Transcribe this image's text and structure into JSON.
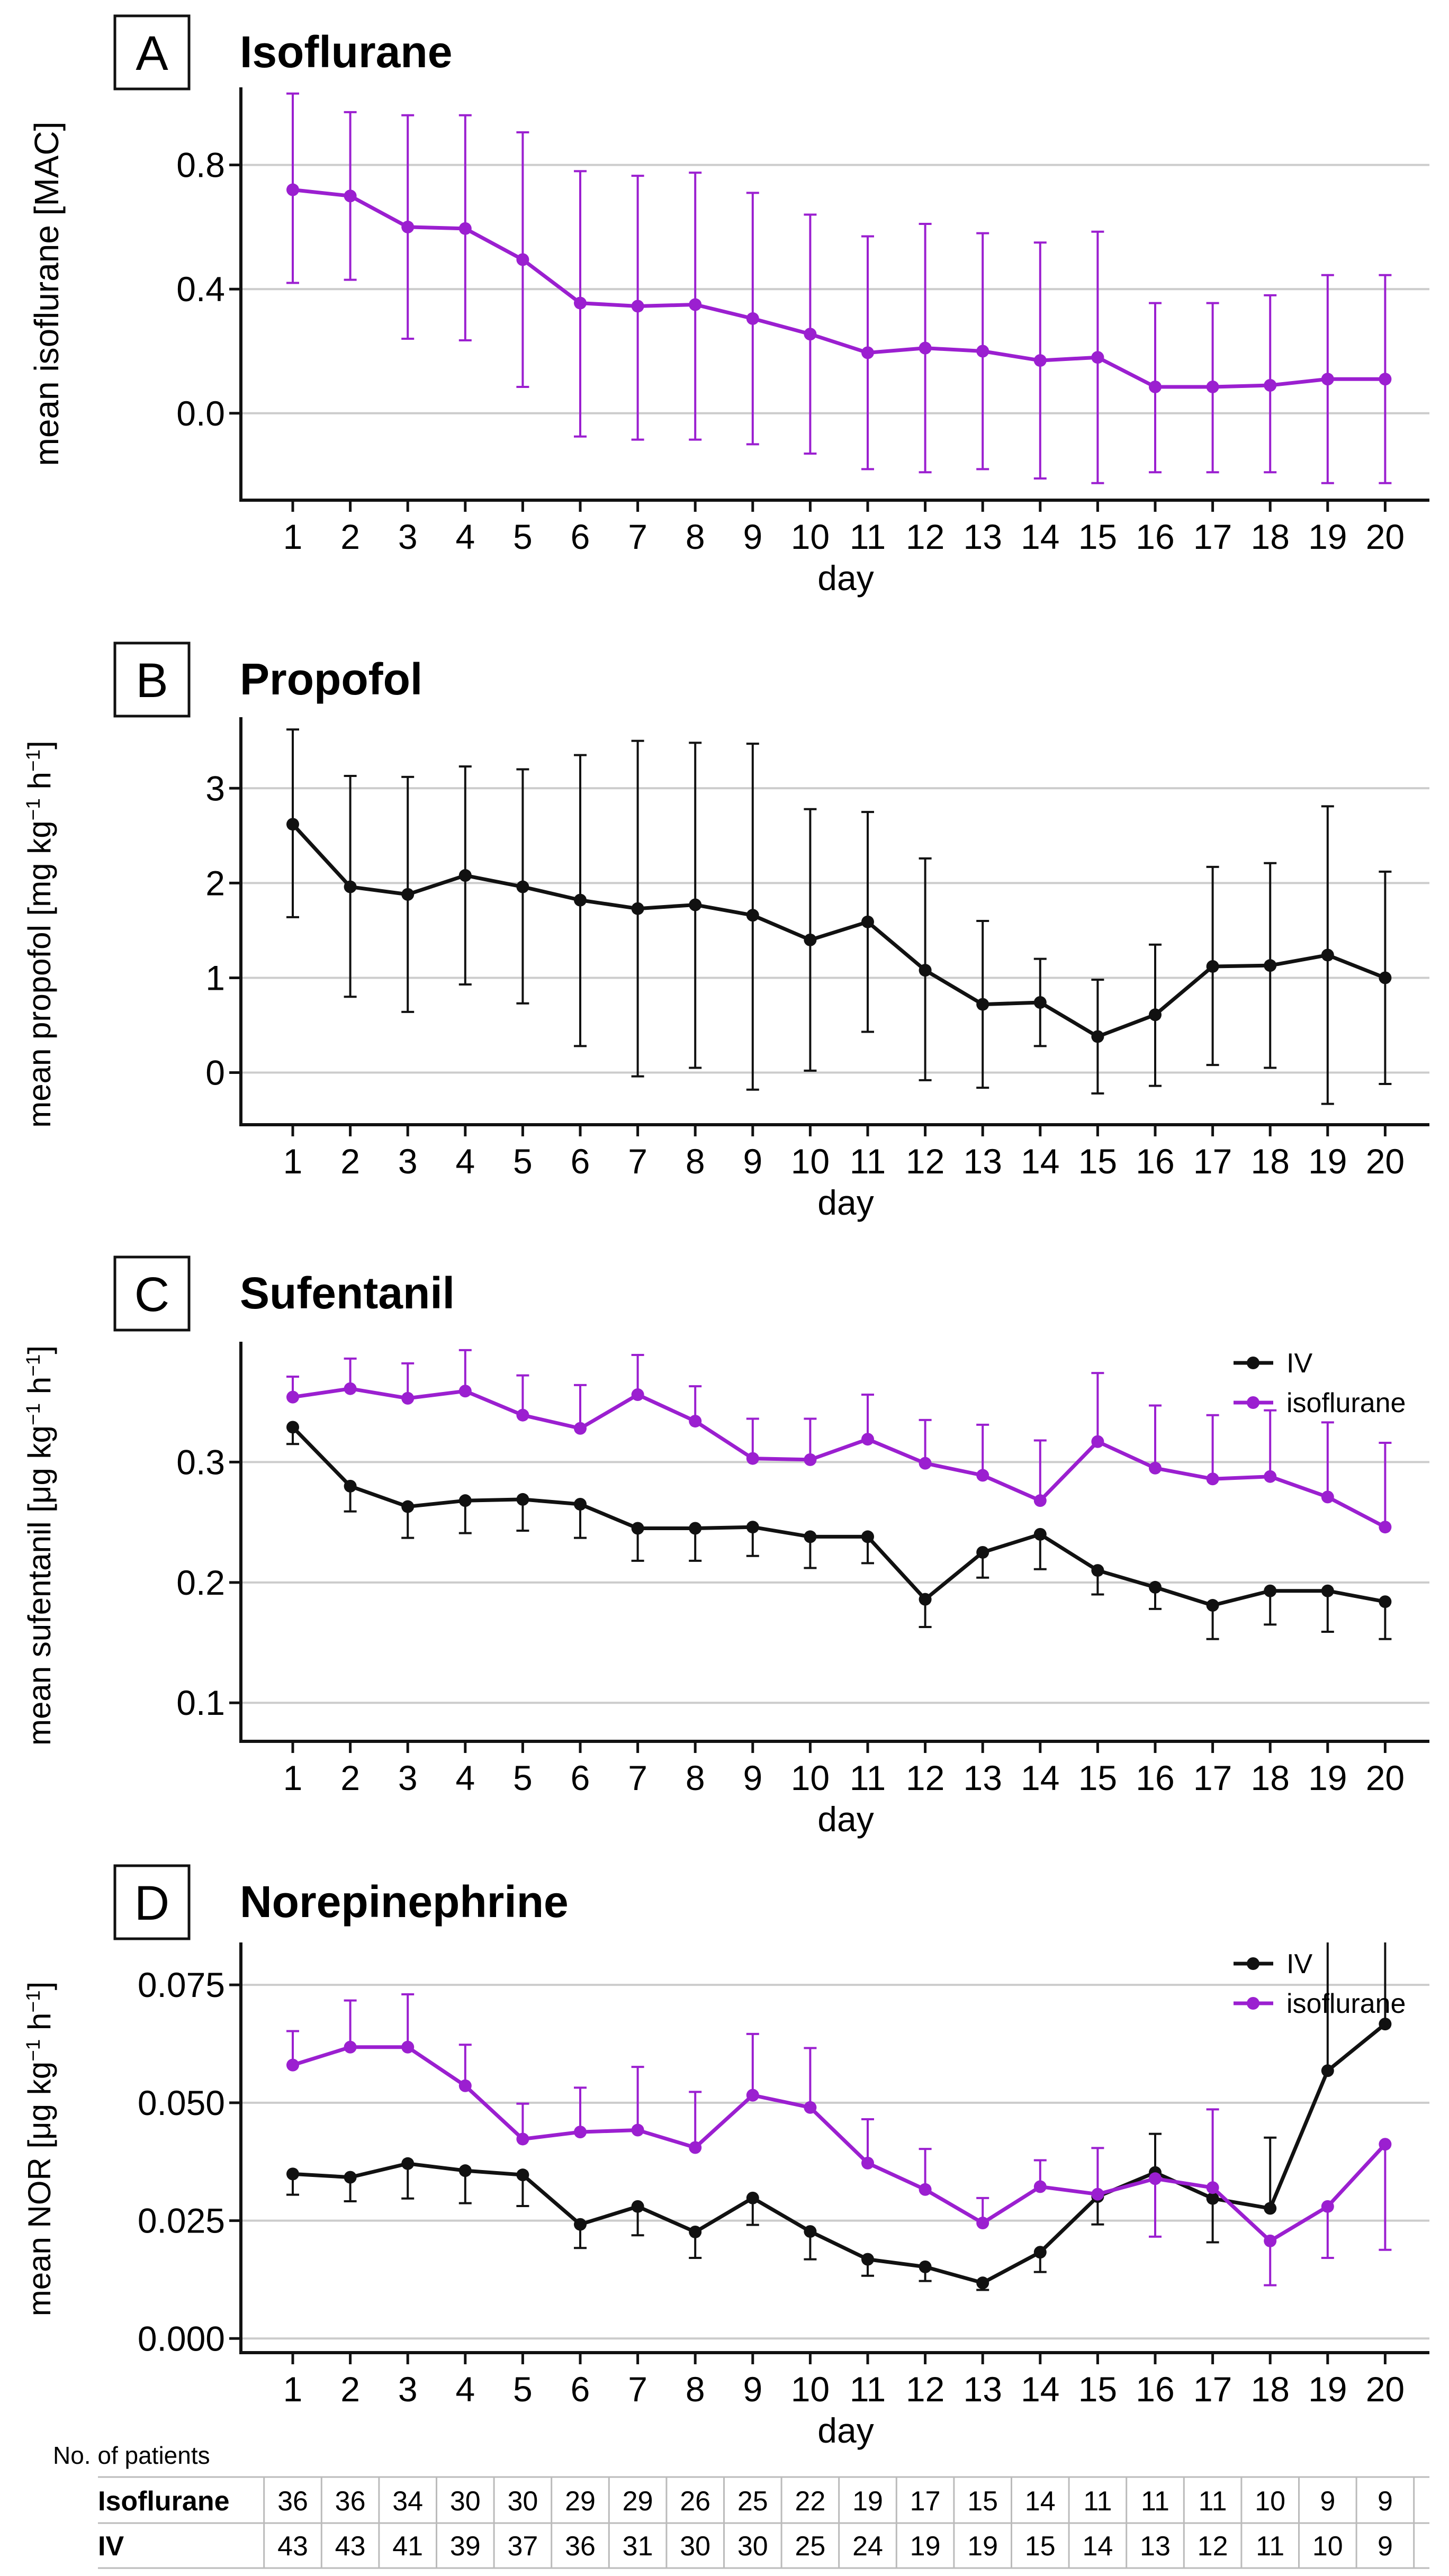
{
  "chart_data": [
    {
      "type": "line",
      "panel": "A",
      "title": "Isoflurane",
      "xlabel": "day",
      "ylabel": "mean isoflurane [MAC]",
      "x": [
        1,
        2,
        3,
        4,
        5,
        6,
        7,
        8,
        9,
        10,
        11,
        12,
        13,
        14,
        15,
        16,
        17,
        18,
        19,
        20
      ],
      "ylim": [
        -0.28,
        1.05
      ],
      "yticks": [
        0.0,
        0.4,
        0.8
      ],
      "ytick_labels": [
        "0.0",
        "0.4",
        "0.8"
      ],
      "grid": true,
      "legend": "none",
      "series": [
        {
          "name": "isoflurane",
          "color": "#9b1fd0",
          "values": [
            0.72,
            0.7,
            0.6,
            0.595,
            0.495,
            0.355,
            0.345,
            0.35,
            0.305,
            0.255,
            0.195,
            0.21,
            0.2,
            0.17,
            0.18,
            0.085,
            0.085,
            0.09,
            0.11,
            0.11
          ],
          "upper": [
            1.03,
            0.97,
            0.96,
            0.96,
            0.905,
            0.78,
            0.765,
            0.775,
            0.71,
            0.64,
            0.57,
            0.61,
            0.58,
            0.55,
            0.585,
            0.355,
            0.355,
            0.38,
            0.445,
            0.445
          ],
          "lower": [
            0.42,
            0.43,
            0.24,
            0.235,
            0.085,
            -0.075,
            -0.085,
            -0.085,
            -0.1,
            -0.13,
            -0.18,
            -0.19,
            -0.18,
            -0.21,
            -0.225,
            -0.19,
            -0.19,
            -0.19,
            -0.225,
            -0.225
          ]
        }
      ]
    },
    {
      "type": "line",
      "panel": "B",
      "title": "Propofol",
      "xlabel": "day",
      "ylabel": "mean propofol [mg kg⁻¹ h⁻¹]",
      "x": [
        1,
        2,
        3,
        4,
        5,
        6,
        7,
        8,
        9,
        10,
        11,
        12,
        13,
        14,
        15,
        16,
        17,
        18,
        19,
        20
      ],
      "ylim": [
        -0.55,
        3.75
      ],
      "yticks": [
        0,
        1,
        2,
        3
      ],
      "ytick_labels": [
        "0",
        "1",
        "2",
        "3"
      ],
      "grid": true,
      "legend": "none",
      "series": [
        {
          "name": "IV",
          "color": "#111111",
          "values": [
            2.62,
            1.96,
            1.88,
            2.08,
            1.96,
            1.82,
            1.73,
            1.77,
            1.66,
            1.4,
            1.59,
            1.08,
            0.72,
            0.74,
            0.38,
            0.61,
            1.12,
            1.13,
            1.24,
            1.0
          ],
          "upper": [
            3.62,
            3.13,
            3.12,
            3.23,
            3.2,
            3.35,
            3.5,
            3.48,
            3.47,
            2.78,
            2.75,
            2.26,
            1.6,
            1.2,
            0.98,
            1.35,
            2.17,
            2.21,
            2.81,
            2.12
          ],
          "lower": [
            1.64,
            0.8,
            0.64,
            0.93,
            0.73,
            0.28,
            -0.04,
            0.05,
            -0.18,
            0.02,
            0.43,
            -0.08,
            -0.16,
            0.28,
            -0.22,
            -0.14,
            0.08,
            0.05,
            -0.33,
            -0.12
          ]
        }
      ]
    },
    {
      "type": "line",
      "panel": "C",
      "title": "Sufentanil",
      "xlabel": "day",
      "ylabel": "mean sufentanil [μg kg⁻¹ h⁻¹]",
      "x": [
        1,
        2,
        3,
        4,
        5,
        6,
        7,
        8,
        9,
        10,
        11,
        12,
        13,
        14,
        15,
        16,
        17,
        18,
        19,
        20
      ],
      "ylim": [
        0.068,
        0.4
      ],
      "yticks": [
        0.1,
        0.2,
        0.3
      ],
      "ytick_labels": [
        "0.1",
        "0.2",
        "0.3"
      ],
      "grid": true,
      "legend": "top-right",
      "legend_entries": [
        "IV",
        "isoflurane"
      ],
      "series": [
        {
          "name": "IV",
          "color": "#111111",
          "values": [
            0.329,
            0.28,
            0.263,
            0.268,
            0.269,
            0.265,
            0.245,
            0.245,
            0.246,
            0.238,
            0.238,
            0.186,
            0.225,
            0.24,
            0.21,
            0.196,
            0.181,
            0.193,
            0.193,
            0.184
          ],
          "upper": null,
          "lower": [
            0.315,
            0.259,
            0.237,
            0.241,
            0.243,
            0.237,
            0.218,
            0.218,
            0.222,
            0.212,
            0.216,
            0.163,
            0.204,
            0.211,
            0.19,
            0.178,
            0.153,
            0.165,
            0.159,
            0.153
          ]
        },
        {
          "name": "isoflurane",
          "color": "#9b1fd0",
          "values": [
            0.354,
            0.361,
            0.353,
            0.359,
            0.339,
            0.328,
            0.356,
            0.334,
            0.303,
            0.302,
            0.319,
            0.299,
            0.289,
            0.268,
            0.317,
            0.295,
            0.286,
            0.288,
            0.271,
            0.246
          ],
          "upper": [
            0.371,
            0.386,
            0.382,
            0.393,
            0.372,
            0.364,
            0.389,
            0.363,
            0.336,
            0.336,
            0.356,
            0.335,
            0.331,
            0.318,
            0.374,
            0.347,
            0.339,
            0.343,
            0.333,
            0.316
          ],
          "lower": null
        }
      ]
    },
    {
      "type": "line",
      "panel": "D",
      "title": "Norepinephrine",
      "xlabel": "day",
      "ylabel": "mean NOR [μg kg⁻¹ h⁻¹]",
      "x": [
        1,
        2,
        3,
        4,
        5,
        6,
        7,
        8,
        9,
        10,
        11,
        12,
        13,
        14,
        15,
        16,
        17,
        18,
        19,
        20
      ],
      "ylim": [
        -0.003,
        0.084
      ],
      "yticks": [
        0.0,
        0.025,
        0.05,
        0.075
      ],
      "ytick_labels": [
        "0.000",
        "0.025",
        "0.050",
        "0.075"
      ],
      "grid": true,
      "legend": "top-right",
      "legend_entries": [
        "IV",
        "isoflurane"
      ],
      "series": [
        {
          "name": "IV",
          "color": "#111111",
          "values": [
            0.0349,
            0.0342,
            0.0371,
            0.0356,
            0.0347,
            0.0242,
            0.028,
            0.0226,
            0.0298,
            0.0227,
            0.0168,
            0.0152,
            0.0118,
            0.0183,
            0.0301,
            0.0352,
            0.0297,
            0.0276,
            0.0568,
            0.0667
          ],
          "upper": [
            null,
            null,
            null,
            null,
            null,
            null,
            null,
            null,
            null,
            null,
            null,
            null,
            null,
            null,
            null,
            0.0434,
            null,
            0.0426,
            0.0867,
            0.106
          ],
          "lower": [
            0.0305,
            0.0291,
            0.0297,
            0.0287,
            0.0281,
            0.0192,
            0.0219,
            0.0171,
            0.0241,
            0.0168,
            0.0133,
            0.0122,
            0.0103,
            0.0141,
            0.0242,
            null,
            0.0204,
            null,
            null,
            null
          ]
        },
        {
          "name": "isoflurane",
          "color": "#9b1fd0",
          "values": [
            0.058,
            0.0618,
            0.0618,
            0.0536,
            0.0423,
            0.0438,
            0.0442,
            0.0405,
            0.0516,
            0.049,
            0.0372,
            0.0316,
            0.0245,
            0.0322,
            0.0306,
            0.0339,
            0.032,
            0.0207,
            0.028,
            0.0412
          ],
          "upper": [
            0.0652,
            0.0717,
            0.073,
            0.0623,
            0.0498,
            0.0532,
            0.0576,
            0.0523,
            0.0646,
            0.0616,
            0.0465,
            0.0402,
            0.0298,
            0.0378,
            0.0404,
            null,
            0.0486,
            null,
            null,
            null
          ],
          "lower": [
            null,
            null,
            null,
            null,
            null,
            null,
            null,
            null,
            null,
            null,
            null,
            null,
            null,
            null,
            null,
            0.0216,
            null,
            0.0113,
            0.0171,
            0.0188
          ]
        }
      ]
    }
  ],
  "patient_table": {
    "title": "No. of patients",
    "rows": [
      {
        "label": "Isoflurane",
        "counts": [
          36,
          36,
          34,
          30,
          30,
          29,
          29,
          26,
          25,
          22,
          19,
          17,
          15,
          14,
          11,
          11,
          11,
          10,
          9,
          9
        ]
      },
      {
        "label": "IV",
        "counts": [
          43,
          43,
          41,
          39,
          37,
          36,
          31,
          30,
          30,
          25,
          24,
          19,
          19,
          15,
          14,
          13,
          12,
          11,
          10,
          9
        ]
      }
    ]
  }
}
